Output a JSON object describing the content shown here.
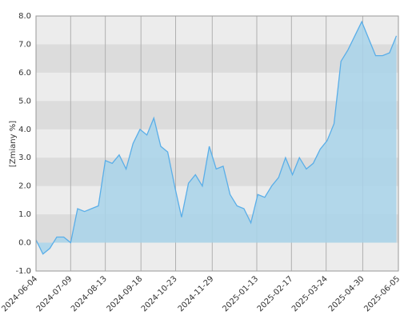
{
  "chart_data": {
    "type": "area",
    "y_label": "[Zmiany %]",
    "color": "#5aaee8",
    "fill": "#a8d4ea",
    "x": [
      "2024-06-04",
      "2024-06-11",
      "2024-06-18",
      "2024-06-25",
      "2024-07-02",
      "2024-07-09",
      "2024-07-16",
      "2024-07-23",
      "2024-07-30",
      "2024-08-06",
      "2024-08-13",
      "2024-08-20",
      "2024-08-27",
      "2024-09-03",
      "2024-09-10",
      "2024-09-17",
      "2024-09-24",
      "2024-10-01",
      "2024-10-08",
      "2024-10-15",
      "2024-10-22",
      "2024-10-29",
      "2024-11-05",
      "2024-11-12",
      "2024-11-19",
      "2024-11-26",
      "2024-12-03",
      "2024-12-10",
      "2024-12-17",
      "2024-12-24",
      "2024-12-31",
      "2025-01-07",
      "2025-01-14",
      "2025-01-21",
      "2025-01-28",
      "2025-02-04",
      "2025-02-11",
      "2025-02-18",
      "2025-02-25",
      "2025-03-04",
      "2025-03-11",
      "2025-03-18",
      "2025-03-25",
      "2025-04-01",
      "2025-04-08",
      "2025-04-15",
      "2025-04-22",
      "2025-04-29",
      "2025-05-06",
      "2025-05-13",
      "2025-05-20",
      "2025-05-27",
      "2025-06-03"
    ],
    "values": [
      0.1,
      -0.4,
      -0.2,
      0.2,
      0.2,
      0.0,
      1.2,
      1.1,
      1.2,
      1.3,
      2.9,
      2.8,
      3.1,
      2.6,
      3.5,
      4.0,
      3.8,
      4.4,
      3.4,
      3.2,
      2.0,
      0.9,
      2.1,
      2.4,
      2.0,
      3.4,
      2.6,
      2.7,
      1.7,
      1.3,
      1.2,
      0.7,
      1.7,
      1.6,
      2.0,
      2.3,
      3.0,
      2.4,
      3.0,
      2.6,
      2.8,
      3.3,
      3.6,
      4.2,
      6.4,
      6.8,
      7.3,
      7.8,
      7.2,
      6.6,
      6.6,
      6.7,
      7.3
    ],
    "xlim": [
      "2024-06-04",
      "2025-06-05"
    ],
    "xticks": [
      "2024-06-04",
      "2024-07-09",
      "2024-08-13",
      "2024-09-18",
      "2024-10-23",
      "2024-11-29",
      "2025-01-13",
      "2025-02-17",
      "2025-03-24",
      "2025-04-30",
      "2025-06-05"
    ],
    "ylim": [
      -1,
      8
    ],
    "yticks": [
      {
        "value": -1,
        "label": "-1.0"
      },
      {
        "value": 0,
        "label": "0.0"
      },
      {
        "value": 1,
        "label": "1.0"
      },
      {
        "value": 2,
        "label": "2.0"
      },
      {
        "value": 3,
        "label": "3.0"
      },
      {
        "value": 4,
        "label": "4.0"
      },
      {
        "value": 5,
        "label": "5.0"
      },
      {
        "value": 6,
        "label": "6.0"
      },
      {
        "value": 7,
        "label": "7.0"
      },
      {
        "value": 8,
        "label": "8.0"
      }
    ],
    "grid": true
  }
}
